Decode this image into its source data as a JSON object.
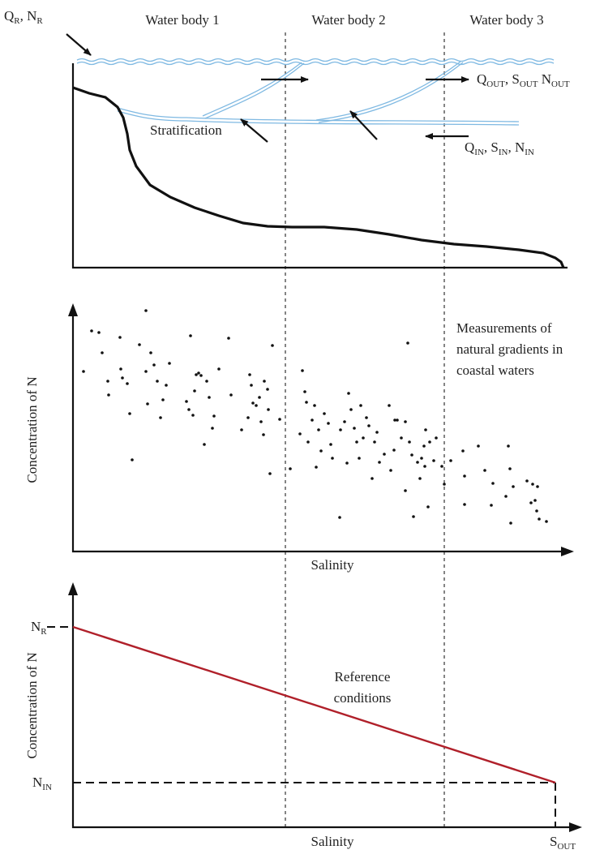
{
  "header_labels": [
    "Water body 1",
    "Water body 2",
    "Water body 3"
  ],
  "panel1": {
    "inflow_label": [
      "Q",
      "R",
      ", N",
      "R"
    ],
    "outflow_label": [
      "Q",
      "OUT",
      ", S",
      "OUT",
      " N",
      "OUT"
    ],
    "sea_inflow_label": [
      "Q",
      "IN",
      ", S",
      "IN",
      ", N",
      "IN"
    ],
    "stratification": "Stratification"
  },
  "panel2": {
    "note": [
      "Measurements of",
      "natural gradients in",
      "coastal waters"
    ],
    "y_label": "Concentration of N",
    "x_label": "Salinity"
  },
  "panel3": {
    "y_label": "Concentration of N",
    "x_label": "Salinity",
    "nr_label": [
      "N",
      "R"
    ],
    "nin_label": [
      "N",
      "IN"
    ],
    "sout_label": [
      "S",
      "OUT"
    ],
    "note": [
      "Reference",
      "conditions"
    ]
  }
}
